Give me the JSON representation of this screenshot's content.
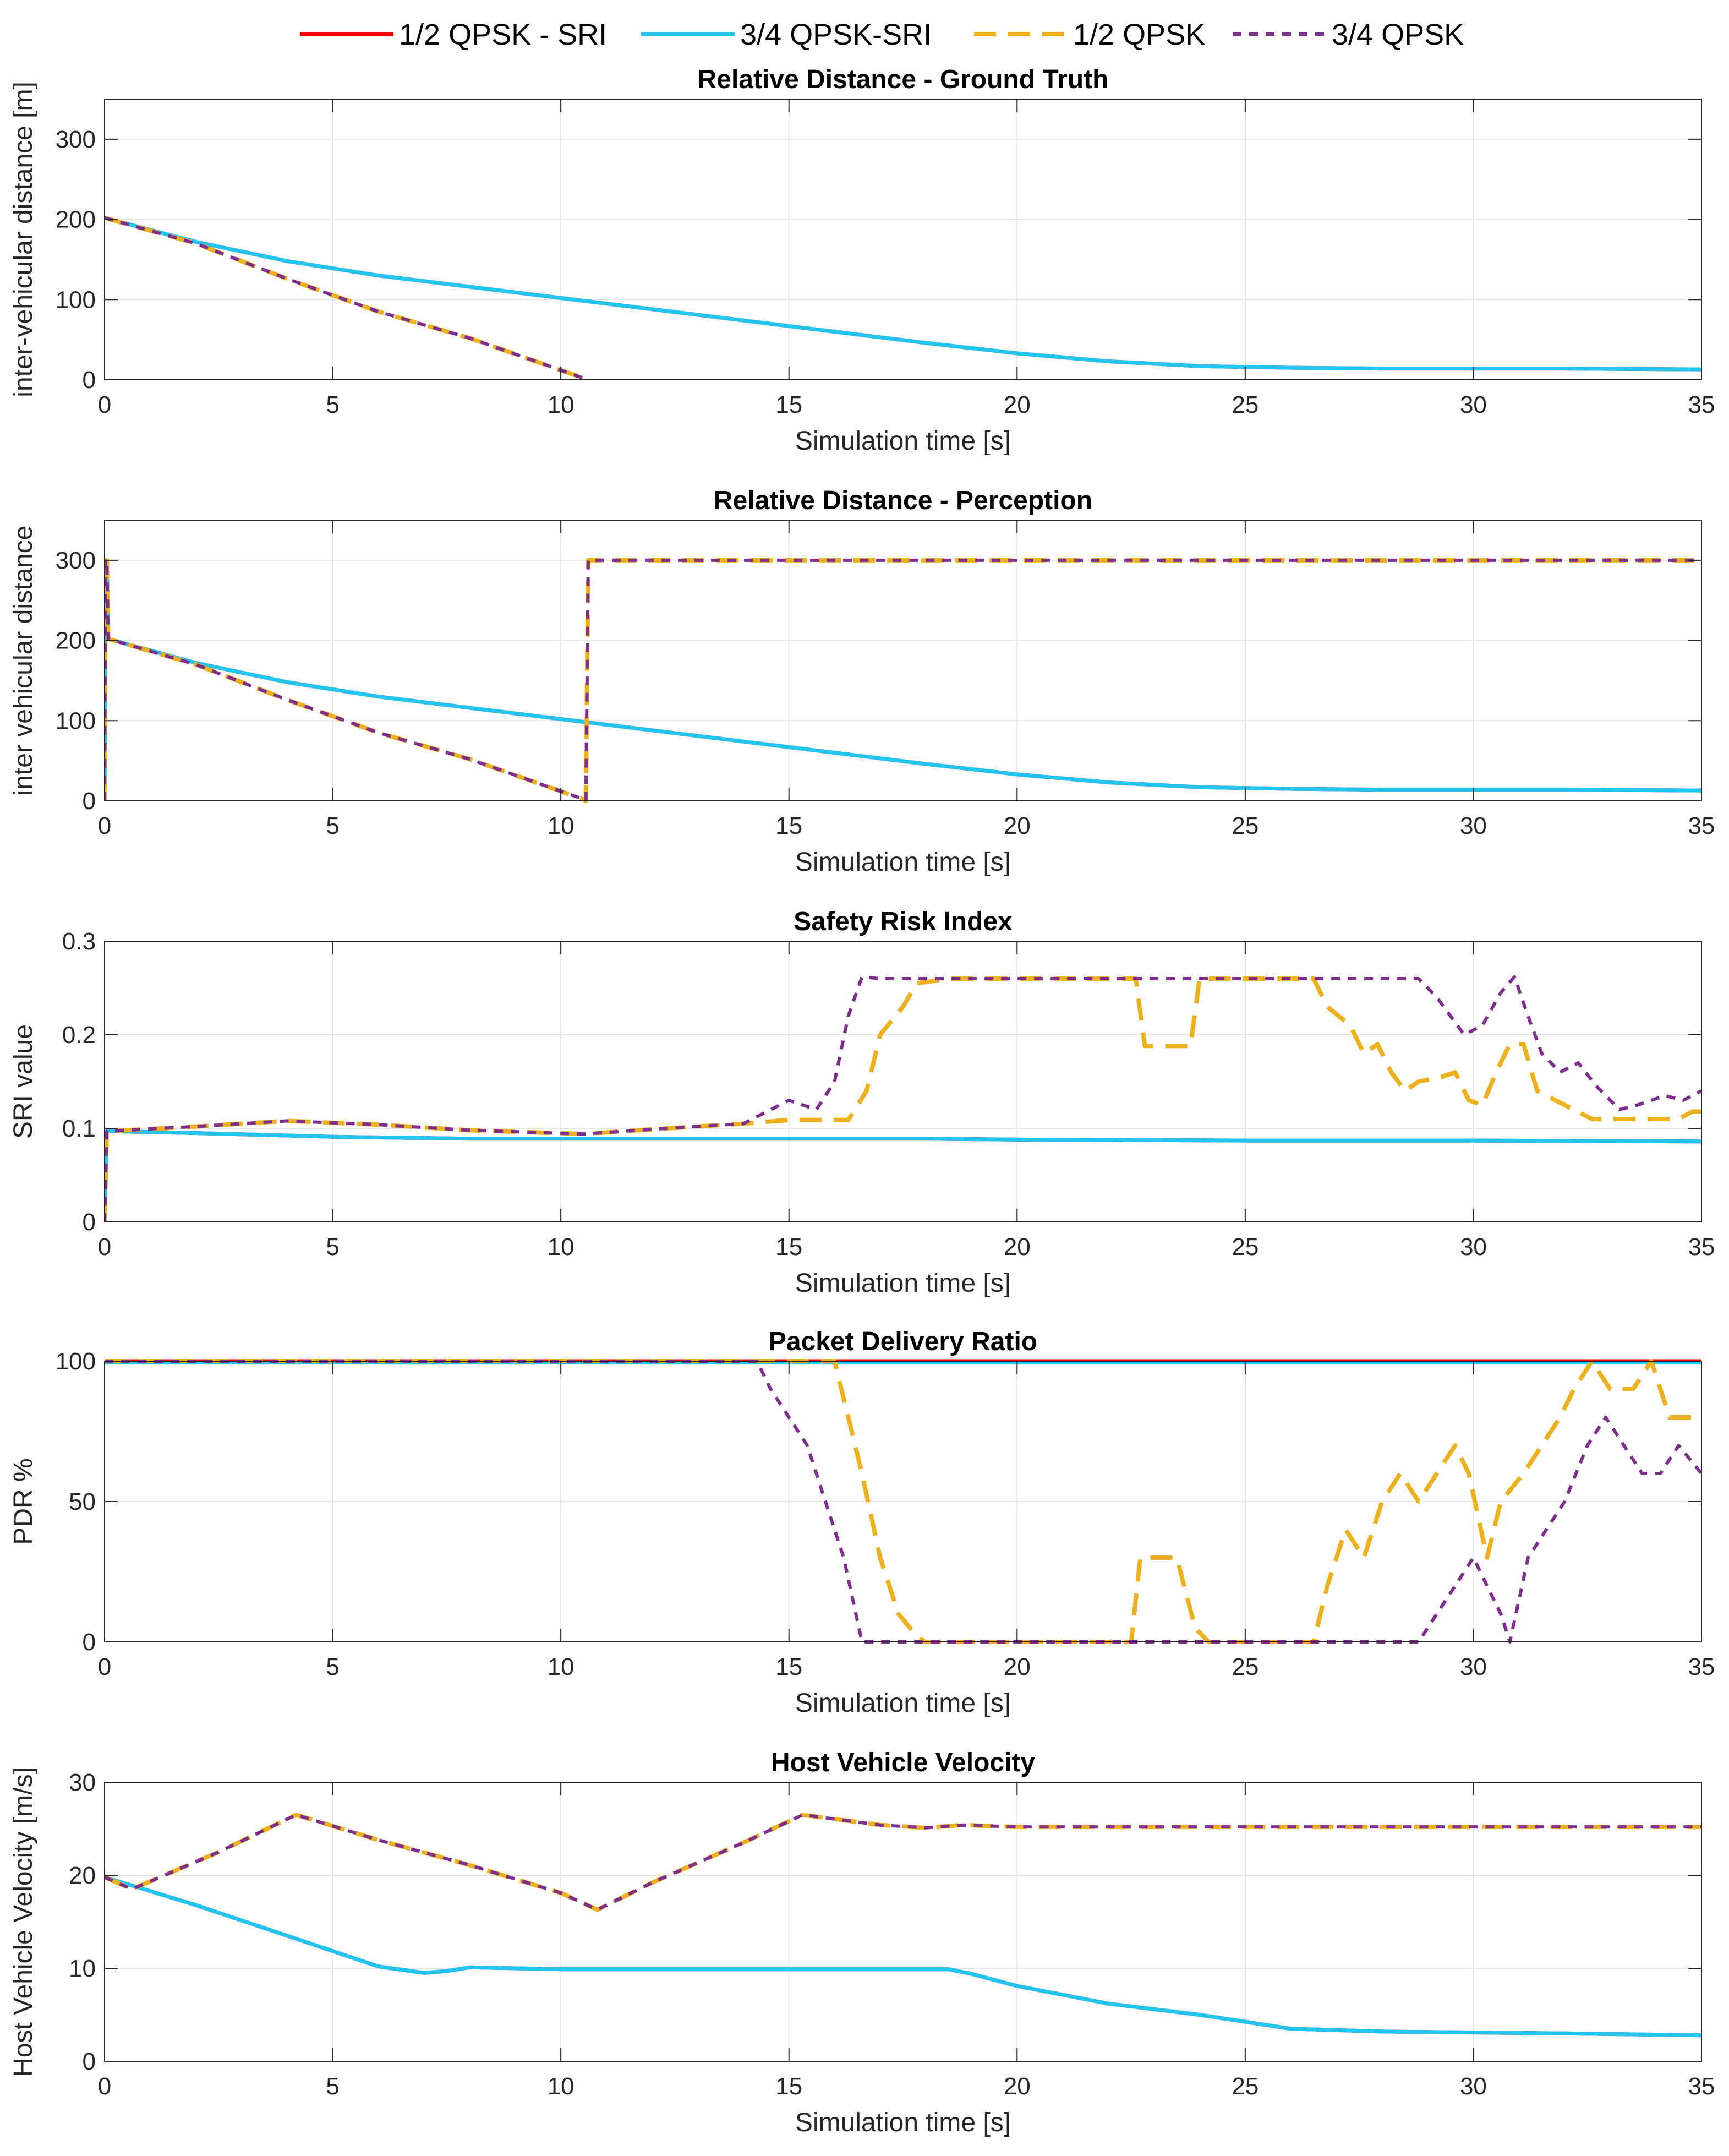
{
  "legend": [
    {
      "name": "1/2 QPSK - SRI",
      "color": "#ff0000",
      "dash": "solid"
    },
    {
      "name": "3/4 QPSK-SRI",
      "color": "#22c4f0",
      "dash": "solid"
    },
    {
      "name": "1/2 QPSK",
      "color": "#edb120",
      "dash": "dashed"
    },
    {
      "name": "3/4 QPSK",
      "color": "#7e2f8e",
      "dash": "dotted"
    }
  ],
  "chart_data": [
    {
      "type": "line",
      "title": "Relative Distance - Ground Truth",
      "xlabel": "Simulation time [s]",
      "ylabel": "inter-vehicular distance [m]",
      "xlim": [
        0,
        35
      ],
      "ylim": [
        0,
        350
      ],
      "xticks": [
        0,
        5,
        10,
        15,
        20,
        25,
        30,
        35
      ],
      "yticks": [
        0,
        100,
        200,
        300
      ],
      "series": [
        {
          "name": "1/2 QPSK - SRI",
          "x": [
            0,
            2,
            4,
            6,
            8,
            10,
            12,
            14,
            16,
            18,
            20,
            22,
            24,
            26,
            28,
            30,
            32,
            35
          ],
          "y": [
            202,
            172,
            148,
            130,
            116,
            102,
            88,
            74,
            60,
            46,
            33,
            23,
            17,
            15,
            14,
            14,
            14,
            13
          ]
        },
        {
          "name": "3/4 QPSK-SRI",
          "x": [
            0,
            2,
            4,
            6,
            8,
            10,
            12,
            14,
            16,
            18,
            20,
            22,
            24,
            26,
            28,
            30,
            32,
            35
          ],
          "y": [
            202,
            172,
            148,
            130,
            116,
            102,
            88,
            74,
            60,
            46,
            33,
            23,
            17,
            15,
            14,
            14,
            14,
            13
          ]
        },
        {
          "name": "1/2 QPSK",
          "x": [
            0,
            2,
            4,
            6,
            8,
            10,
            10.6
          ],
          "y": [
            202,
            170,
            126,
            85,
            52,
            12,
            0
          ]
        },
        {
          "name": "3/4 QPSK",
          "x": [
            0,
            2,
            4,
            6,
            8,
            10,
            10.6
          ],
          "y": [
            202,
            170,
            126,
            85,
            52,
            12,
            0
          ]
        }
      ]
    },
    {
      "type": "line",
      "title": "Relative Distance - Perception",
      "xlabel": "Simulation time [s]",
      "ylabel": "inter vehicular distance",
      "xlim": [
        0,
        35
      ],
      "ylim": [
        0,
        350
      ],
      "xticks": [
        0,
        5,
        10,
        15,
        20,
        25,
        30,
        35
      ],
      "yticks": [
        0,
        100,
        200,
        300
      ],
      "series": [
        {
          "name": "1/2 QPSK - SRI",
          "x": [
            0,
            0.02,
            0.05,
            0.08,
            2,
            4,
            6,
            8,
            10,
            12,
            14,
            16,
            18,
            20,
            22,
            24,
            26,
            28,
            30,
            32,
            35
          ],
          "y": [
            0,
            300,
            300,
            202,
            172,
            148,
            130,
            116,
            102,
            88,
            74,
            60,
            46,
            33,
            23,
            17,
            15,
            14,
            14,
            14,
            13
          ]
        },
        {
          "name": "3/4 QPSK-SRI",
          "x": [
            0,
            0.02,
            0.05,
            0.08,
            2,
            4,
            6,
            8,
            10,
            12,
            14,
            16,
            18,
            20,
            22,
            24,
            26,
            28,
            30,
            32,
            35
          ],
          "y": [
            0,
            300,
            300,
            202,
            172,
            148,
            130,
            116,
            102,
            88,
            74,
            60,
            46,
            33,
            23,
            17,
            15,
            14,
            14,
            14,
            13
          ]
        },
        {
          "name": "1/2 QPSK",
          "x": [
            0,
            0.02,
            0.05,
            0.08,
            2,
            4,
            6,
            8,
            10,
            10.5,
            10.55,
            10.6,
            35
          ],
          "y": [
            0,
            300,
            300,
            202,
            170,
            126,
            85,
            52,
            12,
            2,
            0,
            300,
            300
          ]
        },
        {
          "name": "3/4 QPSK",
          "x": [
            0,
            0.02,
            0.05,
            0.08,
            2,
            4,
            6,
            8,
            10,
            10.5,
            10.55,
            10.6,
            35
          ],
          "y": [
            0,
            300,
            300,
            202,
            170,
            126,
            85,
            52,
            12,
            2,
            0,
            300,
            300
          ]
        }
      ]
    },
    {
      "type": "line",
      "title": "Safety Risk Index",
      "xlabel": "Simulation time [s]",
      "ylabel": "SRI value",
      "xlim": [
        0,
        35
      ],
      "ylim": [
        0,
        0.3
      ],
      "xticks": [
        0,
        5,
        10,
        15,
        20,
        25,
        30,
        35
      ],
      "yticks": [
        0,
        0.1,
        0.2,
        0.3
      ],
      "series": [
        {
          "name": "1/2 QPSK - SRI",
          "x": [
            0,
            0.05,
            0.1,
            2,
            5,
            8,
            10,
            12,
            15,
            18,
            20,
            25,
            30,
            35
          ],
          "y": [
            0,
            0.097,
            0.097,
            0.095,
            0.091,
            0.089,
            0.089,
            0.089,
            0.089,
            0.089,
            0.088,
            0.087,
            0.087,
            0.086
          ]
        },
        {
          "name": "3/4 QPSK-SRI",
          "x": [
            0,
            0.05,
            0.1,
            2,
            5,
            8,
            10,
            12,
            15,
            18,
            20,
            25,
            30,
            35
          ],
          "y": [
            0,
            0.097,
            0.097,
            0.095,
            0.091,
            0.089,
            0.089,
            0.089,
            0.089,
            0.089,
            0.088,
            0.087,
            0.087,
            0.086
          ]
        },
        {
          "name": "1/2 QPSK",
          "x": [
            0,
            0.05,
            0.1,
            2,
            4,
            6,
            8,
            10.5,
            12,
            14,
            15,
            16.3,
            16.7,
            17,
            17.5,
            17.8,
            18.5,
            20,
            22,
            22.6,
            22.8,
            23.8,
            24,
            26.5,
            26.8,
            27.3,
            27.6,
            27.9,
            28.2,
            28.5,
            28.8,
            29.3,
            29.6,
            29.9,
            30.2,
            30.5,
            30.8,
            31.1,
            31.4,
            32.2,
            32.6,
            34.5,
            34.8,
            35
          ],
          "y": [
            0,
            0.097,
            0.097,
            0.102,
            0.108,
            0.104,
            0.098,
            0.094,
            0.099,
            0.105,
            0.109,
            0.109,
            0.14,
            0.2,
            0.23,
            0.255,
            0.26,
            0.26,
            0.26,
            0.26,
            0.188,
            0.188,
            0.26,
            0.26,
            0.23,
            0.21,
            0.18,
            0.19,
            0.16,
            0.14,
            0.15,
            0.155,
            0.16,
            0.13,
            0.125,
            0.16,
            0.19,
            0.19,
            0.14,
            0.12,
            0.11,
            0.11,
            0.118,
            0.118
          ]
        },
        {
          "name": "3/4 QPSK",
          "x": [
            0,
            0.05,
            0.1,
            2,
            4,
            6,
            8,
            10.5,
            12,
            14,
            15,
            15.6,
            16,
            16.3,
            16.6,
            17,
            18,
            20,
            22,
            26,
            28,
            28.8,
            29.2,
            29.8,
            30.2,
            30.6,
            30.9,
            31.2,
            31.5,
            31.9,
            32.3,
            32.7,
            33.2,
            33.6,
            34.2,
            34.6,
            35
          ],
          "y": [
            0,
            0.097,
            0.097,
            0.102,
            0.108,
            0.104,
            0.098,
            0.094,
            0.099,
            0.105,
            0.13,
            0.12,
            0.15,
            0.22,
            0.262,
            0.26,
            0.26,
            0.26,
            0.26,
            0.26,
            0.26,
            0.26,
            0.24,
            0.2,
            0.21,
            0.245,
            0.262,
            0.22,
            0.18,
            0.16,
            0.17,
            0.145,
            0.12,
            0.125,
            0.135,
            0.13,
            0.14
          ]
        }
      ]
    },
    {
      "type": "line",
      "title": "Packet Delivery Ratio",
      "xlabel": "Simulation time [s]",
      "ylabel": "PDR %",
      "xlim": [
        0,
        35
      ],
      "ylim": [
        0,
        100
      ],
      "xticks": [
        0,
        5,
        10,
        15,
        20,
        25,
        30,
        35
      ],
      "yticks": [
        0,
        50,
        100
      ],
      "series": [
        {
          "name": "1/2 QPSK - SRI",
          "x": [
            0,
            35
          ],
          "y": [
            100,
            100
          ]
        },
        {
          "name": "3/4 QPSK-SRI",
          "x": [
            0,
            35
          ],
          "y": [
            99.5,
            99.5
          ]
        },
        {
          "name": "1/2 QPSK",
          "x": [
            0,
            16,
            16.3,
            16.6,
            17,
            17.4,
            17.8,
            18,
            22.5,
            22.7,
            23.5,
            23.9,
            24.2,
            26.5,
            26.8,
            27.2,
            27.6,
            28,
            28.4,
            28.8,
            29.2,
            29.6,
            29.9,
            30.3,
            30.6,
            31.1,
            31.5,
            31.9,
            32.2,
            32.6,
            33,
            33.5,
            33.9,
            34.3,
            34.7,
            35
          ],
          "y": [
            100,
            100,
            80,
            60,
            30,
            10,
            2,
            0,
            0,
            30,
            30,
            5,
            0,
            0,
            20,
            40,
            30,
            50,
            60,
            50,
            60,
            70,
            60,
            30,
            50,
            60,
            70,
            80,
            90,
            100,
            90,
            90,
            100,
            80,
            80,
            80
          ]
        },
        {
          "name": "3/4 QPSK",
          "x": [
            0,
            14.3,
            14.6,
            15,
            15.4,
            15.8,
            16.2,
            16.6,
            17,
            28.8,
            29.2,
            29.6,
            30,
            30.3,
            30.6,
            30.8,
            31.2,
            31.6,
            32,
            32.5,
            32.9,
            33.3,
            33.7,
            34.1,
            34.5,
            35
          ],
          "y": [
            100,
            100,
            90,
            80,
            70,
            50,
            30,
            0,
            0,
            0,
            10,
            20,
            30,
            20,
            10,
            0,
            30,
            40,
            50,
            70,
            80,
            70,
            60,
            60,
            70,
            60
          ]
        }
      ]
    },
    {
      "type": "line",
      "title": "Host Vehicle Velocity",
      "xlabel": "Simulation time [s]",
      "ylabel": "Host Vehicle Velocity [m/s]",
      "xlim": [
        0,
        35
      ],
      "ylim": [
        0,
        30
      ],
      "xticks": [
        0,
        5,
        10,
        15,
        20,
        25,
        30,
        35
      ],
      "yticks": [
        0,
        10,
        20,
        30
      ],
      "series": [
        {
          "name": "1/2 QPSK - SRI",
          "x": [
            0,
            2,
            4,
            6,
            7,
            7.5,
            8,
            10,
            12,
            14,
            16,
            18.5,
            19,
            20,
            22,
            24,
            26,
            28,
            30,
            32,
            35
          ],
          "y": [
            19.8,
            16.8,
            13.5,
            10.2,
            9.5,
            9.7,
            10.1,
            9.9,
            9.9,
            9.9,
            9.9,
            9.9,
            9.4,
            8.1,
            6.2,
            5.0,
            3.5,
            3.2,
            3.1,
            3.0,
            2.8
          ]
        },
        {
          "name": "3/4 QPSK-SRI",
          "x": [
            0,
            2,
            4,
            6,
            7,
            7.5,
            8,
            10,
            12,
            14,
            16,
            18.5,
            19,
            20,
            22,
            24,
            26,
            28,
            30,
            32,
            35
          ],
          "y": [
            19.8,
            16.8,
            13.5,
            10.2,
            9.5,
            9.7,
            10.1,
            9.9,
            9.9,
            9.9,
            9.9,
            9.9,
            9.4,
            8.1,
            6.2,
            5.0,
            3.5,
            3.2,
            3.1,
            3.0,
            2.8
          ]
        },
        {
          "name": "1/2 QPSK",
          "x": [
            0,
            0.6,
            2.5,
            4.2,
            6,
            8,
            10,
            10.8,
            12,
            14,
            15.3,
            17,
            18,
            18.8,
            20,
            25,
            35
          ],
          "y": [
            19.8,
            18.5,
            22.5,
            26.5,
            23.8,
            21.1,
            18.1,
            16.3,
            19.2,
            23.5,
            26.5,
            25.4,
            25.1,
            25.4,
            25.2,
            25.2,
            25.2
          ]
        },
        {
          "name": "3/4 QPSK",
          "x": [
            0,
            0.6,
            2.5,
            4.2,
            6,
            8,
            10,
            10.8,
            12,
            14,
            15.3,
            17,
            18,
            18.8,
            20,
            25,
            35
          ],
          "y": [
            19.8,
            18.5,
            22.5,
            26.5,
            23.8,
            21.1,
            18.1,
            16.3,
            19.2,
            23.5,
            26.5,
            25.4,
            25.1,
            25.4,
            25.2,
            25.2,
            25.2
          ]
        }
      ]
    }
  ]
}
